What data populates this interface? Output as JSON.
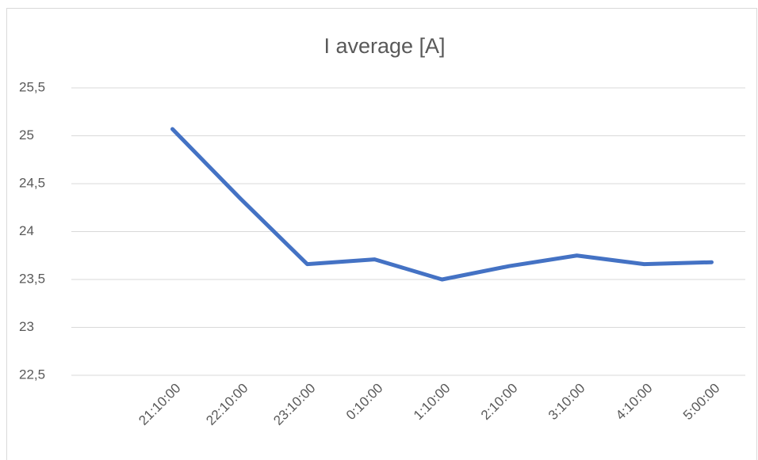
{
  "chart_data": {
    "type": "line",
    "title": "I average [A]",
    "categories": [
      null,
      "21:10:00",
      "22:10:00",
      "23:10:00",
      "0:10:00",
      "1:10:00",
      "2:10:00",
      "3:10:00",
      "4:10:00",
      "5:00:00"
    ],
    "series": [
      {
        "name": "I average [A]",
        "color": "#4472c4",
        "values": [
          null,
          25.07,
          24.35,
          23.66,
          23.71,
          23.5,
          23.64,
          23.75,
          23.66,
          23.68
        ]
      }
    ],
    "ylim": [
      22.5,
      25.5
    ],
    "yticks": [
      {
        "value": 22.5,
        "label": "22,5"
      },
      23,
      {
        "value": 23.5,
        "label": "23,5"
      },
      24,
      {
        "value": 24.5,
        "label": "24,5"
      },
      25,
      {
        "value": 25.5,
        "label": "25,5"
      }
    ],
    "grid": true
  }
}
